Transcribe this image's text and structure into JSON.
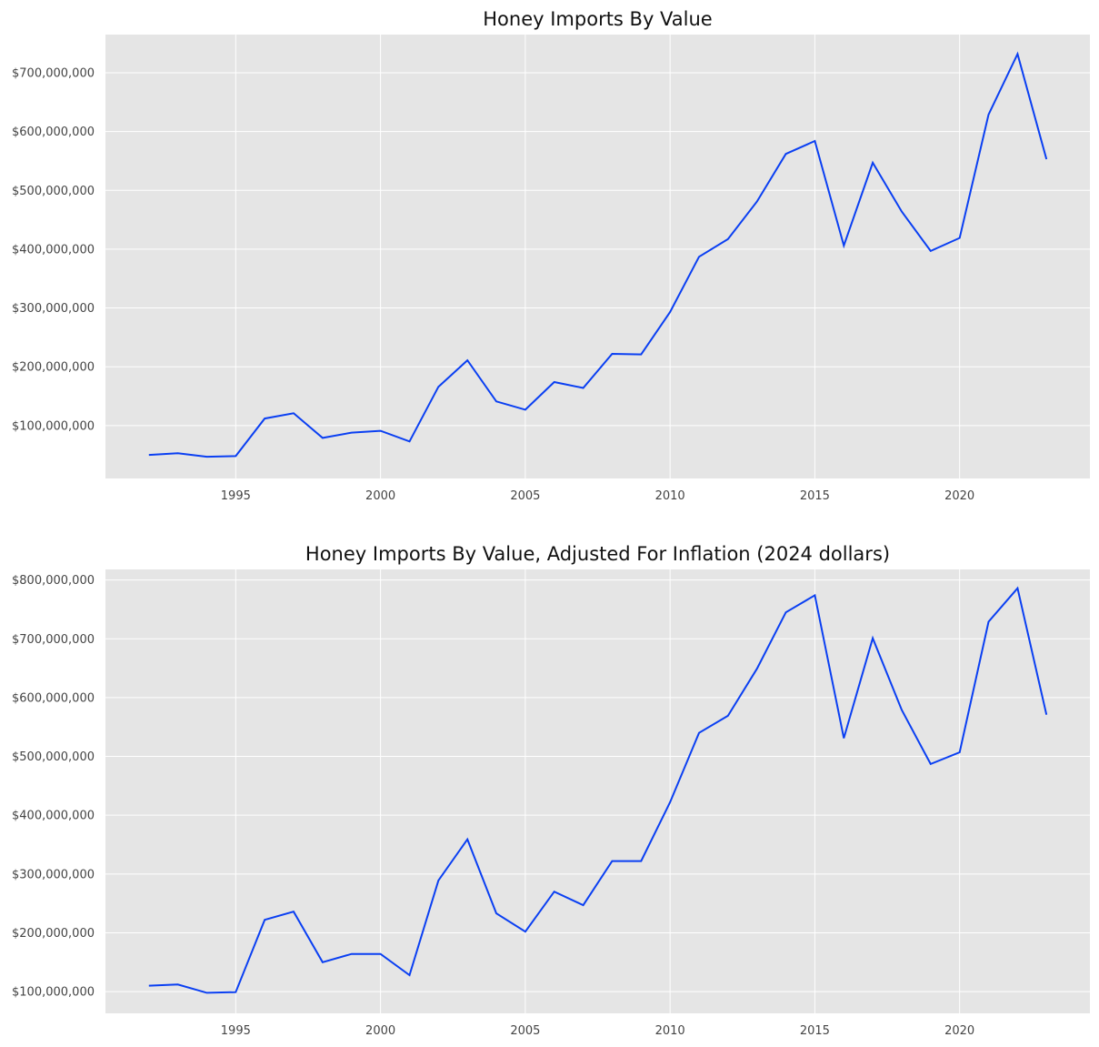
{
  "chart_data": [
    {
      "type": "line",
      "title": "Honey Imports By Value",
      "xlabel": "",
      "ylabel": "",
      "grid": true,
      "xlim": [
        1990.5,
        2024.5
      ],
      "ylim": [
        10000000,
        765000000
      ],
      "x_ticks": [
        1995,
        2000,
        2005,
        2010,
        2015,
        2020
      ],
      "x_tick_labels": [
        "1995",
        "2000",
        "2005",
        "2010",
        "2015",
        "2020"
      ],
      "y_ticks": [
        100000000,
        200000000,
        300000000,
        400000000,
        500000000,
        600000000,
        700000000
      ],
      "y_tick_labels": [
        "$100,000,000",
        "$200,000,000",
        "$300,000,000",
        "$400,000,000",
        "$500,000,000",
        "$600,000,000",
        "$700,000,000"
      ],
      "color": "#0a3ff2",
      "x": [
        1992,
        1993,
        1994,
        1995,
        1996,
        1997,
        1998,
        1999,
        2000,
        2001,
        2002,
        2003,
        2004,
        2005,
        2006,
        2007,
        2008,
        2009,
        2010,
        2011,
        2012,
        2013,
        2014,
        2015,
        2016,
        2017,
        2018,
        2019,
        2020,
        2021,
        2022,
        2023
      ],
      "y": [
        50000000,
        53000000,
        47000000,
        48000000,
        112000000,
        121000000,
        79000000,
        88000000,
        91000000,
        73000000,
        166000000,
        211000000,
        141000000,
        127000000,
        174000000,
        164000000,
        222000000,
        221000000,
        293000000,
        387000000,
        417000000,
        481000000,
        562000000,
        584000000,
        406000000,
        547000000,
        464000000,
        397000000,
        419000000,
        629000000,
        732000000,
        553000000
      ]
    },
    {
      "type": "line",
      "title": "Honey Imports By Value, Adjusted For Inflation (2024 dollars)",
      "xlabel": "",
      "ylabel": "",
      "grid": true,
      "xlim": [
        1990.5,
        2024.5
      ],
      "ylim": [
        63000000,
        818000000
      ],
      "x_ticks": [
        1995,
        2000,
        2005,
        2010,
        2015,
        2020
      ],
      "x_tick_labels": [
        "1995",
        "2000",
        "2005",
        "2010",
        "2015",
        "2020"
      ],
      "y_ticks": [
        100000000,
        200000000,
        300000000,
        400000000,
        500000000,
        600000000,
        700000000,
        800000000
      ],
      "y_tick_labels": [
        "$100,000,000",
        "$200,000,000",
        "$300,000,000",
        "$400,000,000",
        "$500,000,000",
        "$600,000,000",
        "$700,000,000",
        "$800,000,000"
      ],
      "color": "#0a3ff2",
      "x": [
        1992,
        1993,
        1994,
        1995,
        1996,
        1997,
        1998,
        1999,
        2000,
        2001,
        2002,
        2003,
        2004,
        2005,
        2006,
        2007,
        2008,
        2009,
        2010,
        2011,
        2012,
        2013,
        2014,
        2015,
        2016,
        2017,
        2018,
        2019,
        2020,
        2021,
        2022,
        2023
      ],
      "y": [
        110000000,
        112000000,
        98000000,
        99000000,
        222000000,
        236000000,
        150000000,
        164000000,
        164000000,
        128000000,
        289000000,
        359000000,
        233000000,
        202000000,
        270000000,
        247000000,
        322000000,
        322000000,
        422000000,
        540000000,
        569000000,
        649000000,
        745000000,
        774000000,
        531000000,
        701000000,
        579000000,
        487000000,
        507000000,
        729000000,
        786000000,
        571000000
      ]
    }
  ]
}
